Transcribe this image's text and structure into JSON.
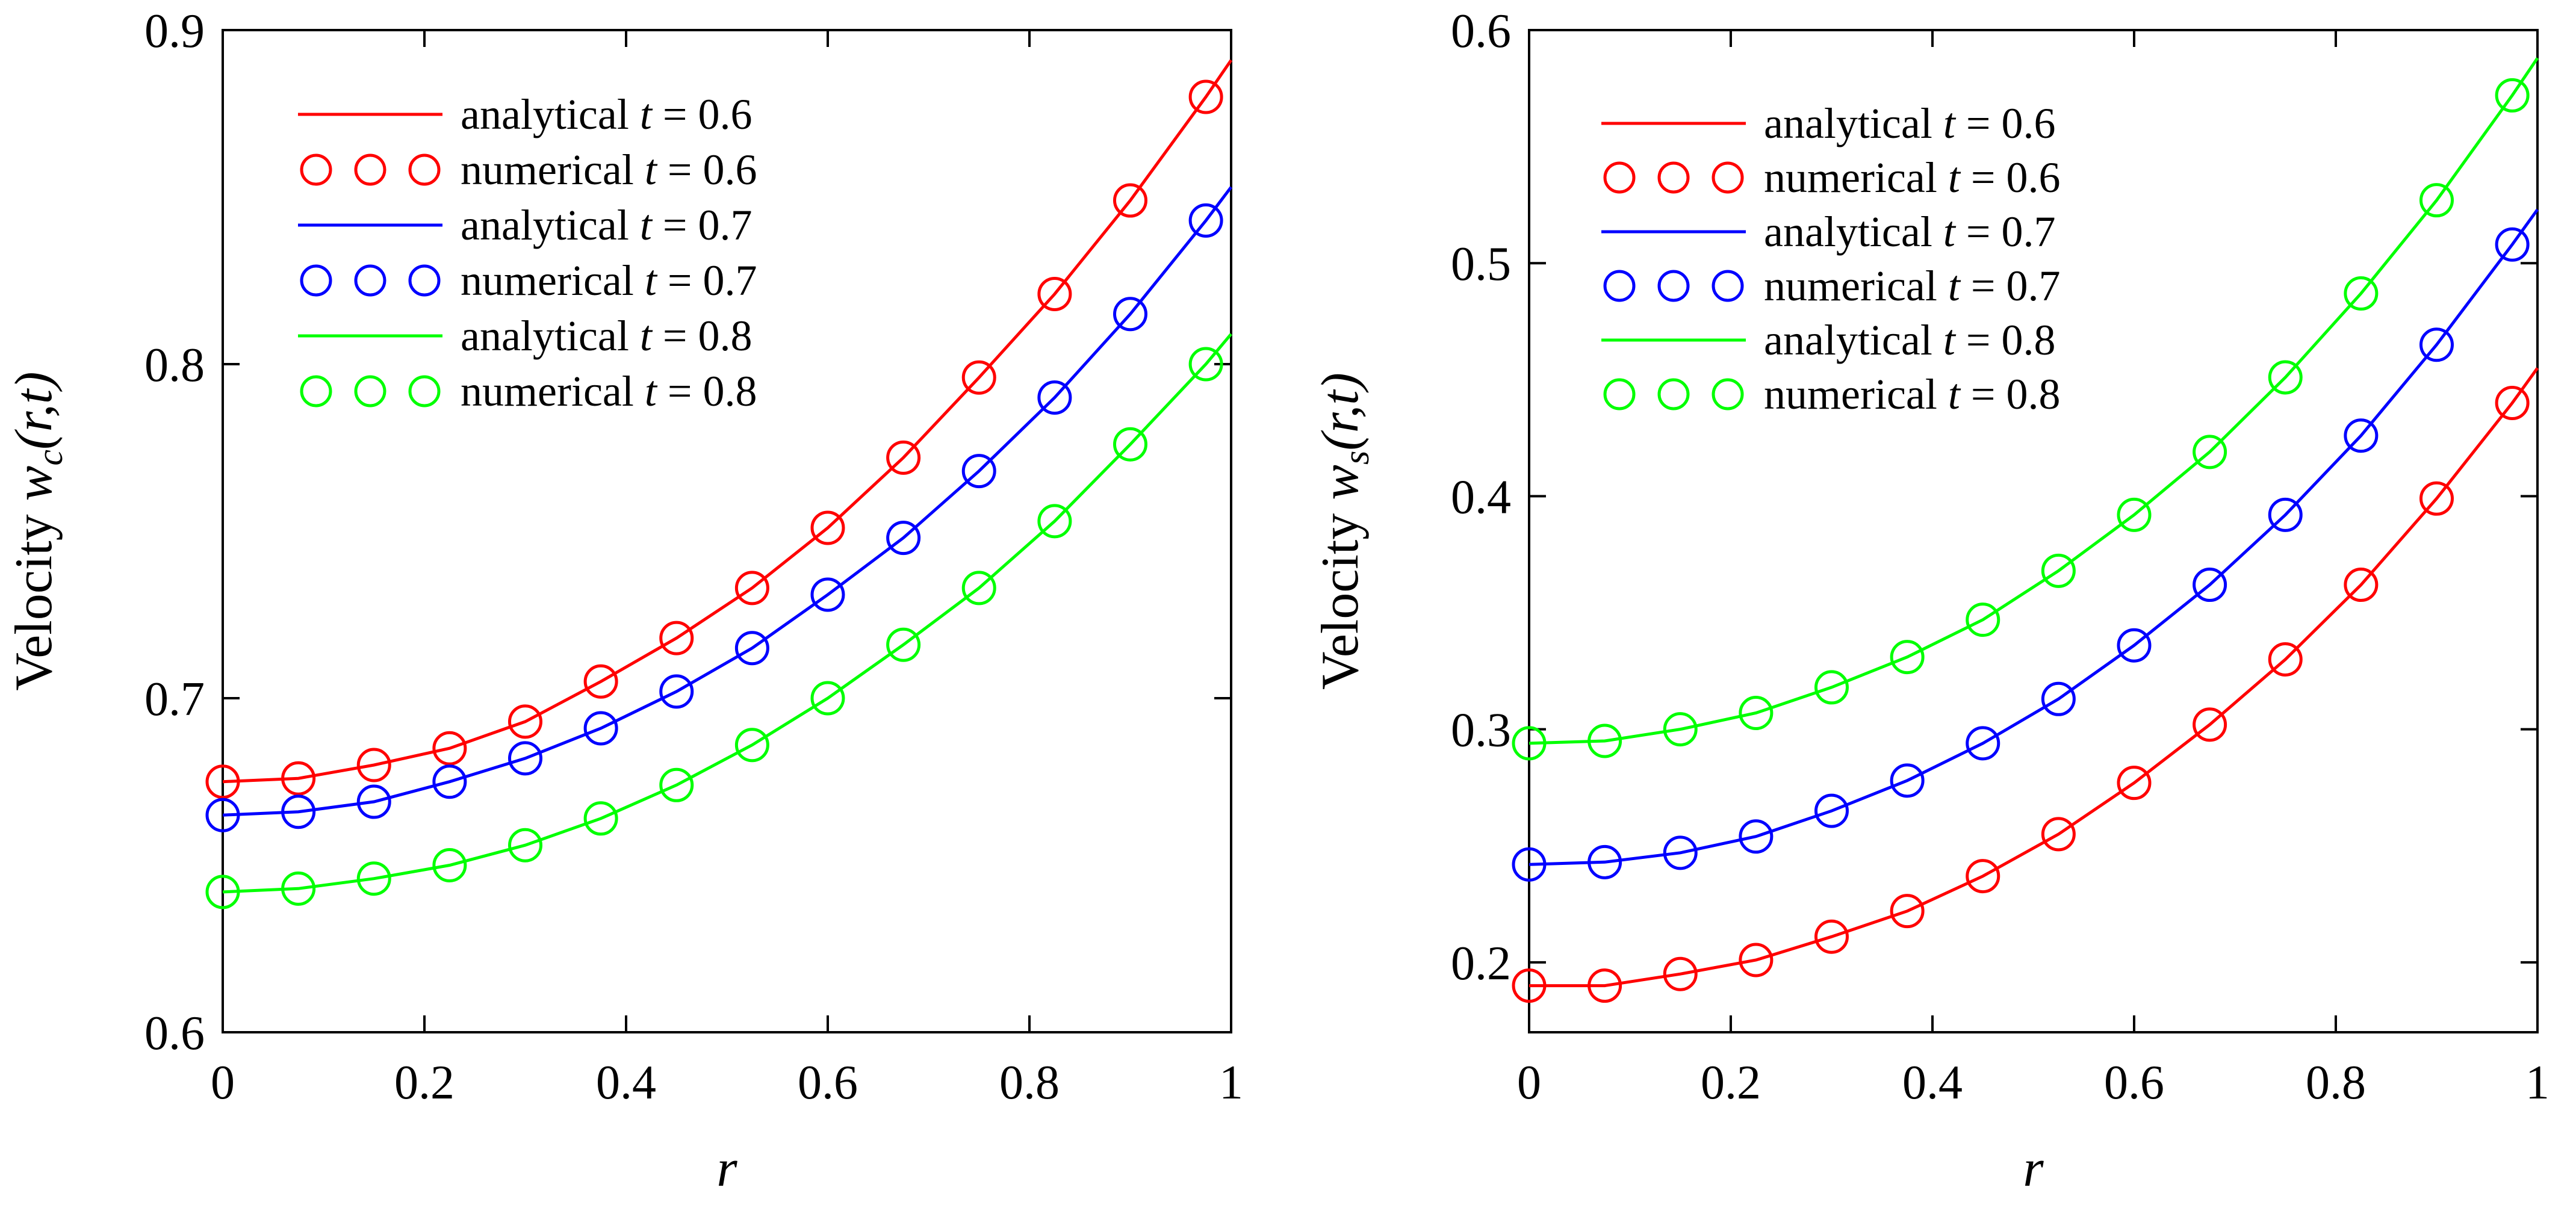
{
  "colors": {
    "t06": "#ff0000",
    "t07": "#0000ff",
    "t08": "#00ff00",
    "axis": "#000000"
  },
  "chart_data": [
    {
      "type": "line",
      "xlabel": "r",
      "ylabel": {
        "prefix": "Velocity ",
        "symbol": "w",
        "subscript": "c",
        "args": "(r,t)"
      },
      "xlim": [
        0,
        1
      ],
      "ylim": [
        0.6,
        0.9
      ],
      "xticks": [
        0,
        0.2,
        0.4,
        0.6,
        0.8,
        1
      ],
      "xtick_labels": [
        "0",
        "0.2",
        "0.4",
        "0.6",
        "0.8",
        "1"
      ],
      "yticks": [
        0.6,
        0.7,
        0.8,
        0.9
      ],
      "ytick_labels": [
        "0.6",
        "0.7",
        "0.8",
        "0.9"
      ],
      "grid": false,
      "legend_position": "top-left",
      "legend": [
        {
          "kind": "line",
          "color": "t06",
          "text": "analytical ",
          "t_text": "t",
          "val_text": " = 0.6"
        },
        {
          "kind": "marker",
          "color": "t06",
          "text": "numerical ",
          "t_text": "t",
          "val_text": " = 0.6"
        },
        {
          "kind": "line",
          "color": "t07",
          "text": "analytical ",
          "t_text": "t",
          "val_text": " = 0.7"
        },
        {
          "kind": "marker",
          "color": "t07",
          "text": "numerical ",
          "t_text": "t",
          "val_text": " = 0.7"
        },
        {
          "kind": "line",
          "color": "t08",
          "text": "analytical ",
          "t_text": "t",
          "val_text": " = 0.8"
        },
        {
          "kind": "marker",
          "color": "t08",
          "text": "numerical ",
          "t_text": "t",
          "val_text": " = 0.8"
        }
      ],
      "x": [
        0,
        0.075,
        0.15,
        0.225,
        0.3,
        0.375,
        0.45,
        0.525,
        0.6,
        0.675,
        0.75,
        0.825,
        0.9,
        0.975,
        1.0
      ],
      "series": [
        {
          "name": "t = 0.6",
          "color": "t06",
          "values": [
            0.675,
            0.676,
            0.68,
            0.685,
            0.693,
            0.705,
            0.718,
            0.733,
            0.751,
            0.772,
            0.796,
            0.821,
            0.849,
            0.88,
            0.891
          ]
        },
        {
          "name": "t = 0.7",
          "color": "t07",
          "values": [
            0.665,
            0.666,
            0.669,
            0.675,
            0.682,
            0.691,
            0.702,
            0.715,
            0.731,
            0.748,
            0.768,
            0.79,
            0.815,
            0.843,
            0.853
          ]
        },
        {
          "name": "t = 0.8",
          "color": "t08",
          "values": [
            0.642,
            0.643,
            0.646,
            0.65,
            0.656,
            0.664,
            0.674,
            0.686,
            0.7,
            0.716,
            0.733,
            0.753,
            0.776,
            0.8,
            0.809
          ]
        }
      ]
    },
    {
      "type": "line",
      "xlabel": "r",
      "ylabel": {
        "prefix": "Velocity ",
        "symbol": "w",
        "subscript": "s",
        "args": "(r,t)"
      },
      "xlim": [
        0,
        1
      ],
      "ylim": [
        0.17,
        0.6
      ],
      "xticks": [
        0,
        0.2,
        0.4,
        0.6,
        0.8,
        1
      ],
      "xtick_labels": [
        "0",
        "0.2",
        "0.4",
        "0.6",
        "0.8",
        "1"
      ],
      "yticks": [
        0.2,
        0.3,
        0.4,
        0.5,
        0.6
      ],
      "ytick_labels": [
        "0.2",
        "0.3",
        "0.4",
        "0.5",
        "0.6"
      ],
      "grid": false,
      "legend_position": "top-left",
      "legend": [
        {
          "kind": "line",
          "color": "t06",
          "text": "analytical ",
          "t_text": "t",
          "val_text": " = 0.6"
        },
        {
          "kind": "marker",
          "color": "t06",
          "text": "numerical ",
          "t_text": "t",
          "val_text": " = 0.6"
        },
        {
          "kind": "line",
          "color": "t07",
          "text": "analytical ",
          "t_text": "t",
          "val_text": " = 0.7"
        },
        {
          "kind": "marker",
          "color": "t07",
          "text": "numerical ",
          "t_text": "t",
          "val_text": " = 0.7"
        },
        {
          "kind": "line",
          "color": "t08",
          "text": "analytical ",
          "t_text": "t",
          "val_text": " = 0.8"
        },
        {
          "kind": "marker",
          "color": "t08",
          "text": "numerical ",
          "t_text": "t",
          "val_text": " = 0.8"
        }
      ],
      "x": [
        0,
        0.075,
        0.15,
        0.225,
        0.3,
        0.375,
        0.45,
        0.525,
        0.6,
        0.675,
        0.75,
        0.825,
        0.9,
        0.975,
        1.0
      ],
      "series": [
        {
          "name": "t = 0.6",
          "color": "t06",
          "values": [
            0.19,
            0.19,
            0.195,
            0.201,
            0.211,
            0.222,
            0.237,
            0.255,
            0.277,
            0.302,
            0.33,
            0.362,
            0.399,
            0.44,
            0.455
          ]
        },
        {
          "name": "t = 0.7",
          "color": "t07",
          "values": [
            0.242,
            0.243,
            0.247,
            0.254,
            0.265,
            0.278,
            0.294,
            0.313,
            0.336,
            0.362,
            0.392,
            0.426,
            0.465,
            0.508,
            0.523
          ]
        },
        {
          "name": "t = 0.8",
          "color": "t08",
          "values": [
            0.294,
            0.295,
            0.3,
            0.307,
            0.318,
            0.331,
            0.347,
            0.368,
            0.392,
            0.419,
            0.451,
            0.487,
            0.527,
            0.572,
            0.588
          ]
        }
      ]
    }
  ]
}
